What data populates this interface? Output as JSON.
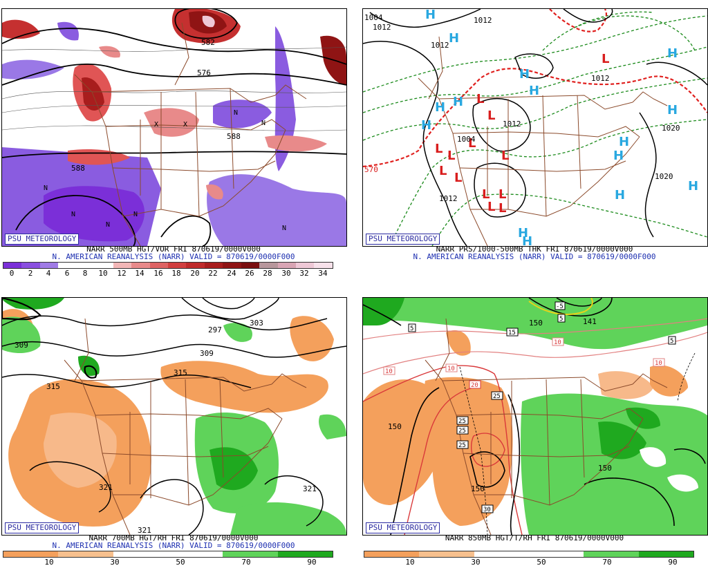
{
  "panels": [
    {
      "id": "tl",
      "title": "NARR 500MB HGT/VOR FRI 870619/0000V000",
      "subtitle": "N. AMERICAN REANALYSIS (NARR) VALID = 870619/0000F000",
      "badge": "PSU METEOROLOGY",
      "contour_labels": [
        "576",
        "588",
        "582",
        "588"
      ],
      "map_symbols": [
        "N",
        "X"
      ],
      "colorbar": {
        "ticks": [
          "0",
          "2",
          "4",
          "6",
          "8",
          "10",
          "12",
          "14",
          "16",
          "18",
          "20",
          "22",
          "24",
          "26",
          "28",
          "30",
          "32",
          "34"
        ],
        "colors": [
          "#7b2fd8",
          "#8a4fe0",
          "#a07be6",
          "#ffffff",
          "#ffffff",
          "#ffffff",
          "#f2b6b6",
          "#e88a8a",
          "#de6363",
          "#d13f3f",
          "#bf2a2a",
          "#a81d1d",
          "#8f1414",
          "#7a0e0e",
          "#b8979c",
          "#d9a5b4",
          "#eec8d6",
          "#f7e1ea"
        ]
      }
    },
    {
      "id": "tr",
      "title": "NARR PRS/1000-500MB THK FRI 870619/0000V000",
      "subtitle": "N. AMERICAN REANALYSIS (NARR) VALID = 870619/0000F000",
      "badge": "PSU METEOROLOGY",
      "contour_labels": [
        "1004",
        "1012",
        "1012",
        "1012",
        "1020",
        "1020",
        "1012",
        "1012",
        "570",
        "1012",
        "1004"
      ],
      "map_symbols": [
        "H",
        "L"
      ]
    },
    {
      "id": "bl",
      "title": "NARR 700MB HGT/RH FRI 870619/0000V000",
      "subtitle": "N. AMERICAN REANALYSIS (NARR) VALID = 870619/0000F000",
      "badge": "PSU METEOROLOGY",
      "contour_labels": [
        "309",
        "309",
        "315",
        "315",
        "321",
        "321",
        "321",
        "303",
        "297"
      ],
      "colorbar": {
        "ticks": [
          "10",
          "30",
          "50",
          "70",
          "90"
        ],
        "colors": [
          "#f4a05c",
          "#f7c08e",
          "#ffffff",
          "#ffffff",
          "#5fd35a",
          "#1fa91f"
        ]
      }
    },
    {
      "id": "br",
      "title": "NARR 850MB HGT/T/RH FRI 870619/0000V000",
      "subtitle": "",
      "badge": "PSU METEOROLOGY",
      "contour_labels": [
        "150",
        "150",
        "150",
        "150",
        "141"
      ],
      "temp_labels": [
        "5",
        "5",
        "-5",
        "5",
        "10",
        "10",
        "10",
        "10",
        "15",
        "20",
        "25",
        "25",
        "25",
        "25",
        "25",
        "30"
      ],
      "colorbar": {
        "ticks": [
          "10",
          "30",
          "50",
          "70",
          "90"
        ],
        "colors": [
          "#f4a05c",
          "#f7c08e",
          "#ffffff",
          "#ffffff",
          "#5fd35a",
          "#1fa91f"
        ]
      }
    }
  ]
}
